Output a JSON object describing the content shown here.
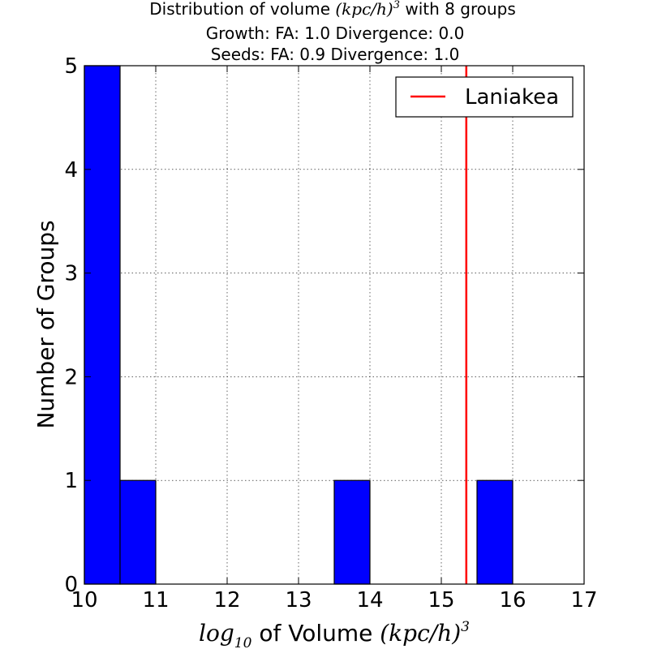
{
  "chart_data": {
    "type": "bar",
    "title_lines": [
      [
        "Distribution of volume ",
        "(kpc/h)",
        "3",
        " with 8 groups"
      ],
      "Growth: FA: 1.0 Divergence: 0.0",
      "Seeds: FA: 0.9 Divergence: 1.0"
    ],
    "title": {
      "prefix": "Distribution of volume ",
      "math": "(kpc/h)",
      "sup": "3",
      "suffix": " with 8 groups",
      "line2": "Growth: FA: 1.0 Divergence: 0.0",
      "line3": "Seeds: FA: 0.9 Divergence: 1.0"
    },
    "xlabel": {
      "math_prefix": "log",
      "sub": "10",
      "text": " of Volume ",
      "math": "(kpc/h)",
      "sup": "3"
    },
    "ylabel": "Number of Groups",
    "xlim": [
      10,
      17
    ],
    "ylim": [
      0,
      5
    ],
    "xticks": [
      "10",
      "11",
      "12",
      "13",
      "14",
      "15",
      "16",
      "17"
    ],
    "yticks": [
      "0",
      "1",
      "2",
      "3",
      "4",
      "5"
    ],
    "grid": true,
    "bar_color": "#0000ff",
    "bins": [
      {
        "x0": 10.0,
        "x1": 10.5,
        "count": 5
      },
      {
        "x0": 10.5,
        "x1": 11.0,
        "count": 1
      },
      {
        "x0": 11.0,
        "x1": 11.5,
        "count": 0
      },
      {
        "x0": 11.5,
        "x1": 12.0,
        "count": 0
      },
      {
        "x0": 12.0,
        "x1": 12.5,
        "count": 0
      },
      {
        "x0": 12.5,
        "x1": 13.0,
        "count": 0
      },
      {
        "x0": 13.0,
        "x1": 13.5,
        "count": 0
      },
      {
        "x0": 13.5,
        "x1": 14.0,
        "count": 1
      },
      {
        "x0": 14.0,
        "x1": 14.5,
        "count": 0
      },
      {
        "x0": 14.5,
        "x1": 15.0,
        "count": 0
      },
      {
        "x0": 15.0,
        "x1": 15.5,
        "count": 0
      },
      {
        "x0": 15.5,
        "x1": 16.0,
        "count": 1
      }
    ],
    "reference_line": {
      "name": "Laniakea",
      "x": 15.35,
      "color": "#ff0000"
    },
    "legend_placement": "top-right"
  }
}
